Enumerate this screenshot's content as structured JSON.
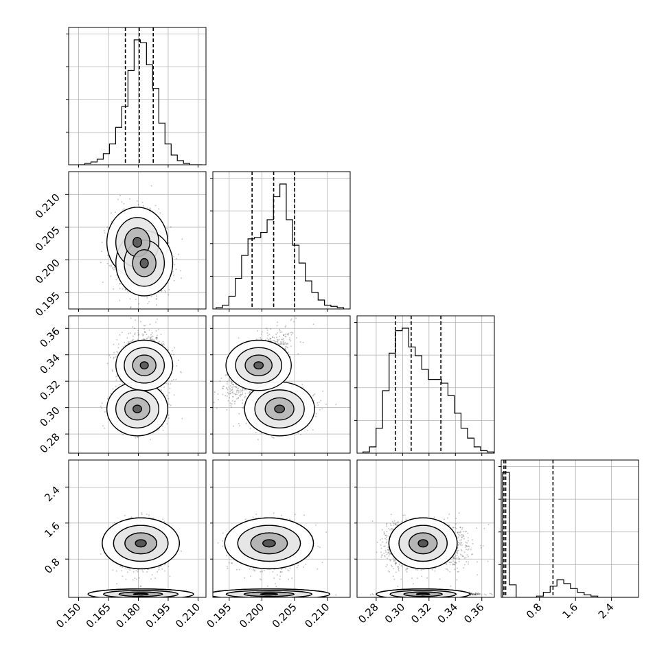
{
  "chart_data": {
    "type": "corner",
    "parameters": [
      {
        "range": [
          0.145,
          0.214
        ],
        "ticks": [
          "0.150",
          "0.165",
          "0.180",
          "0.195",
          "0.210"
        ],
        "tick_values": [
          0.15,
          0.165,
          0.18,
          0.195,
          0.21
        ],
        "quantiles": [
          0.1735,
          0.1805,
          0.1875
        ]
      },
      {
        "range": [
          0.1925,
          0.2135
        ],
        "ticks": [
          "0.195",
          "0.200",
          "0.205",
          "0.210"
        ],
        "tick_values": [
          0.195,
          0.2,
          0.205,
          0.21
        ],
        "quantiles": [
          0.1985,
          0.2018,
          0.205
        ]
      },
      {
        "range": [
          0.2655,
          0.3695
        ],
        "ticks": [
          "0.28",
          "0.30",
          "0.32",
          "0.34",
          "0.36"
        ],
        "tick_values": [
          0.28,
          0.3,
          0.32,
          0.34,
          0.36
        ],
        "quantiles": [
          0.2945,
          0.3065,
          0.329
        ]
      },
      {
        "range": [
          -0.05,
          3.0
        ],
        "ticks": [
          "0.8",
          "1.6",
          "2.4"
        ],
        "tick_values": [
          0.8,
          1.6,
          2.4
        ],
        "quantiles": [
          0.01,
          0.05,
          1.1
        ]
      }
    ],
    "histograms": [
      {
        "counts": [
          0,
          1,
          2,
          4,
          8,
          15,
          27,
          42,
          68,
          90,
          88,
          72,
          55,
          30,
          15,
          7,
          3,
          1,
          0,
          0
        ]
      },
      {
        "counts": [
          1,
          3,
          10,
          24,
          42,
          55,
          56,
          60,
          70,
          88,
          98,
          70,
          50,
          36,
          22,
          13,
          7,
          3,
          2,
          1
        ]
      },
      {
        "counts": [
          1,
          5,
          20,
          50,
          80,
          98,
          100,
          85,
          78,
          67,
          59,
          59,
          56,
          46,
          32,
          20,
          12,
          5,
          2,
          1
        ]
      },
      {
        "counts": [
          100,
          10,
          0,
          0,
          0,
          1,
          4,
          9,
          14,
          11,
          7,
          4,
          2,
          1,
          0,
          0,
          0,
          0,
          0,
          0
        ]
      }
    ],
    "x_tick_label_rotation": 45,
    "y_tick_label_rotation": 45,
    "grid": true,
    "grid_color": "#b0b0b0",
    "line_color": "#000000"
  }
}
